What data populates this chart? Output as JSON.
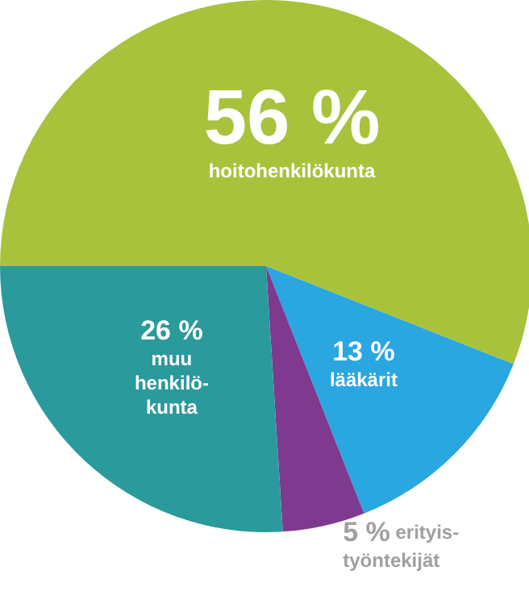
{
  "chart_data": {
    "type": "pie",
    "categories": [
      "hoitohenkilökunta",
      "lääkärit",
      "erityis-\ntyöntekijät",
      "muu\nhenkilö-\nkunta"
    ],
    "values": [
      56,
      13,
      5,
      26
    ],
    "value_labels": [
      "56 %",
      "13 %",
      "5 %",
      "26 %"
    ],
    "colors": [
      "#a9c23c",
      "#2aa6e0",
      "#7d3a8e",
      "#2a9a9c"
    ],
    "legend": false
  }
}
